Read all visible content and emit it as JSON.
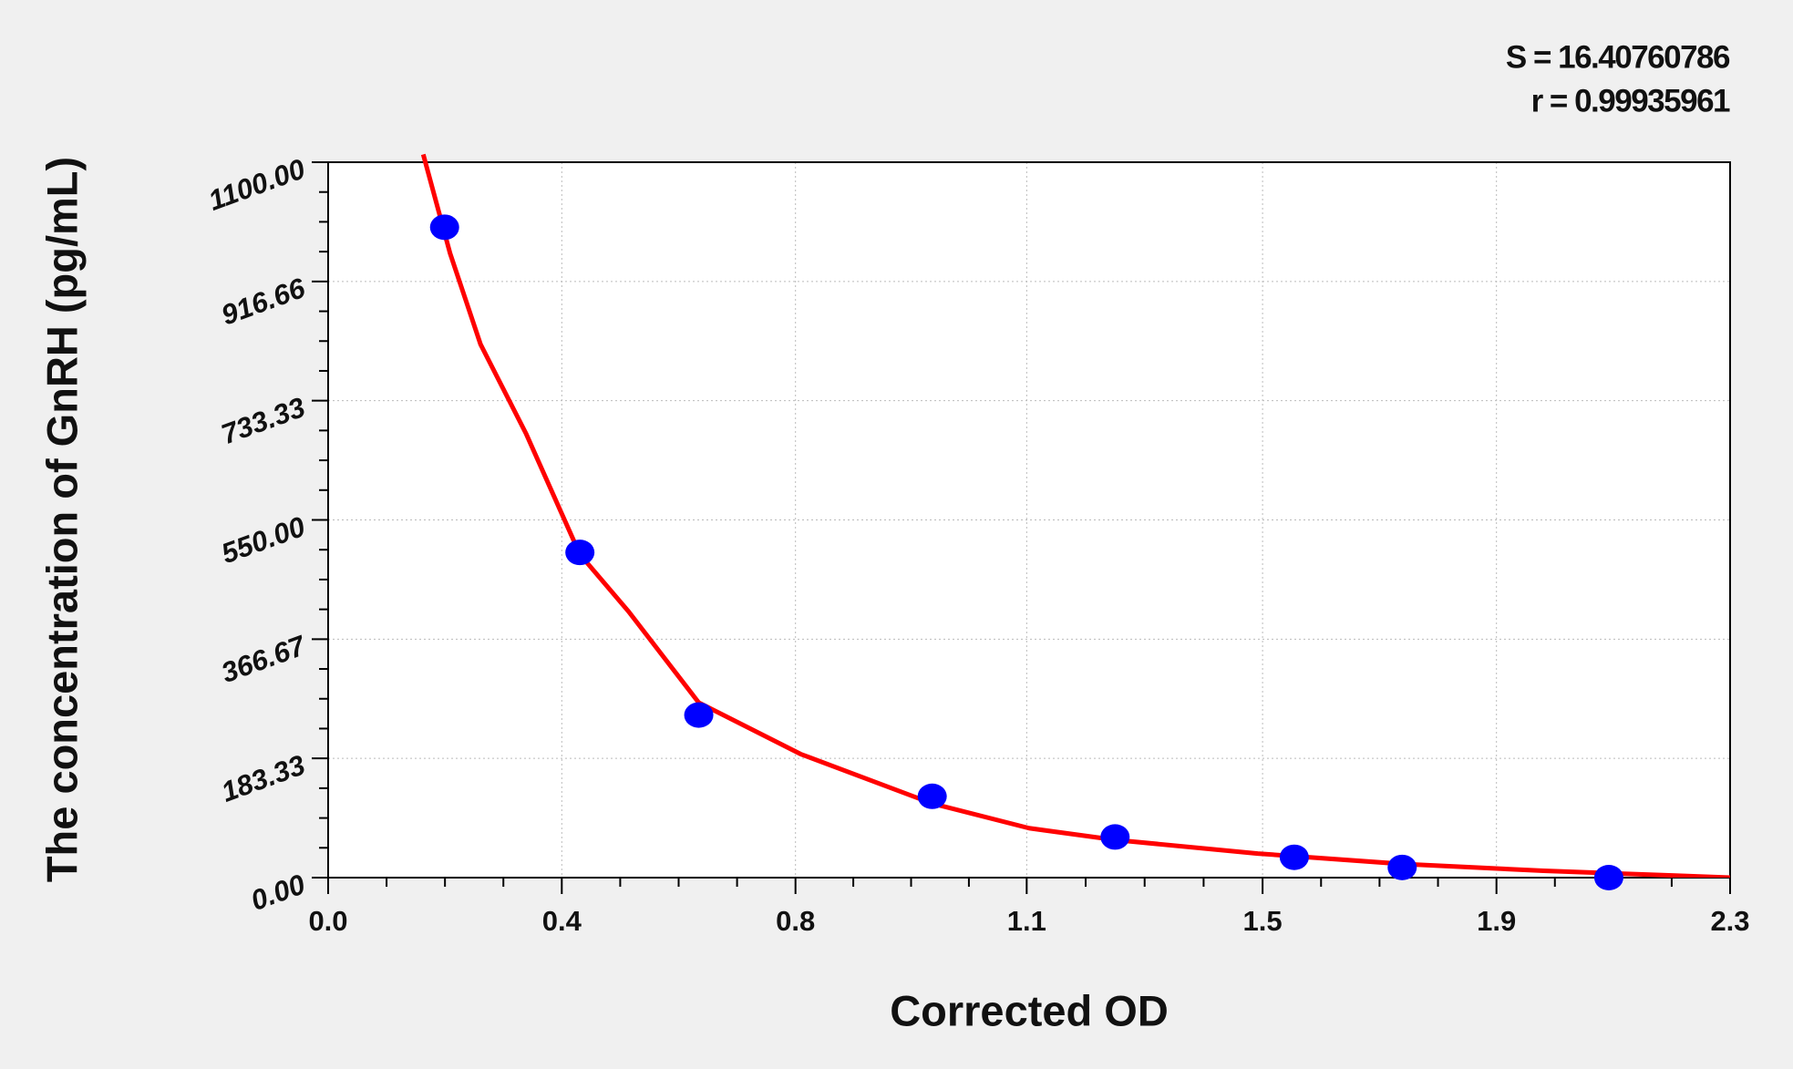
{
  "chart_data": {
    "type": "scatter",
    "annotations": [
      "S = 16.40760786",
      "r = 0.99935961"
    ],
    "x_label": "Corrected OD",
    "y_label": "The concentration of GnRH (pg/mL)",
    "xlim": [
      0,
      2.3
    ],
    "ylim": [
      0,
      1100
    ],
    "xticks": [
      {
        "value": 0,
        "label": "0.0"
      },
      {
        "value": 0.3833,
        "label": "0.4"
      },
      {
        "value": 0.7667,
        "label": "0.8"
      },
      {
        "value": 1.146,
        "label": "1.1"
      },
      {
        "value": 1.533,
        "label": "1.5"
      },
      {
        "value": 1.9167,
        "label": "1.9"
      },
      {
        "value": 2.3,
        "label": "2.3"
      }
    ],
    "yticks": [
      {
        "value": 0,
        "label": "0.00"
      },
      183.33,
      366.67,
      {
        "value": 550,
        "label": "550.00"
      },
      733.33,
      916.66,
      {
        "value": 1100,
        "label": "1100.00"
      }
    ],
    "grid": true,
    "series": [
      {
        "type": "line",
        "color": "#ff0000",
        "x": [
          0.156,
          0.2,
          0.25,
          0.325,
          0.413,
          0.493,
          0.608,
          0.775,
          0.991,
          1.15,
          1.291,
          1.525,
          1.762,
          1.994,
          2.2,
          2.3
        ],
        "values": [
          1112,
          960,
          820,
          682,
          497,
          409,
          269,
          190,
          114,
          76,
          58,
          37,
          21,
          10.5,
          3.5,
          0
        ]
      },
      {
        "type": "scatter",
        "color": "#0000ff",
        "x": [
          0.191,
          0.413,
          0.608,
          0.991,
          1.291,
          1.585,
          1.762,
          2.101
        ],
        "values": [
          1000,
          500,
          250,
          125,
          62.5,
          31.25,
          15.63,
          0
        ]
      }
    ]
  }
}
